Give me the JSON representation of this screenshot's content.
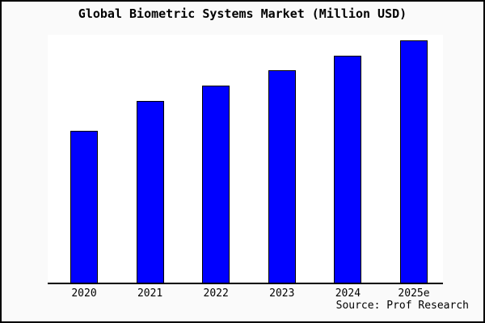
{
  "frame": {
    "background_color": "#fafafa",
    "plot_background_color": "#ffffff",
    "border_color": "#000000"
  },
  "title": "Global Biometric Systems Market (Million USD)",
  "source": "Source: Prof Research",
  "chart_data": {
    "type": "bar",
    "title": "Global Biometric Systems Market (Million USD)",
    "categories": [
      "2020",
      "2021",
      "2022",
      "2023",
      "2024",
      "2025e"
    ],
    "values": [
      61.2,
      73.3,
      79.5,
      85.7,
      91.5,
      97.7
    ],
    "values_unit": "percent_of_axis_max",
    "note": "Y-axis has no tick labels or gridlines; bar values estimated as percent of axis maximum from bar heights",
    "xlabel": "",
    "ylabel": "",
    "ylim": [
      0,
      100
    ],
    "grid": false,
    "legend": false,
    "y_axis_visible": false,
    "x_axis_line_color": "#000000",
    "bar_color": "#0000ff",
    "bar_edge_color": "#000000"
  }
}
